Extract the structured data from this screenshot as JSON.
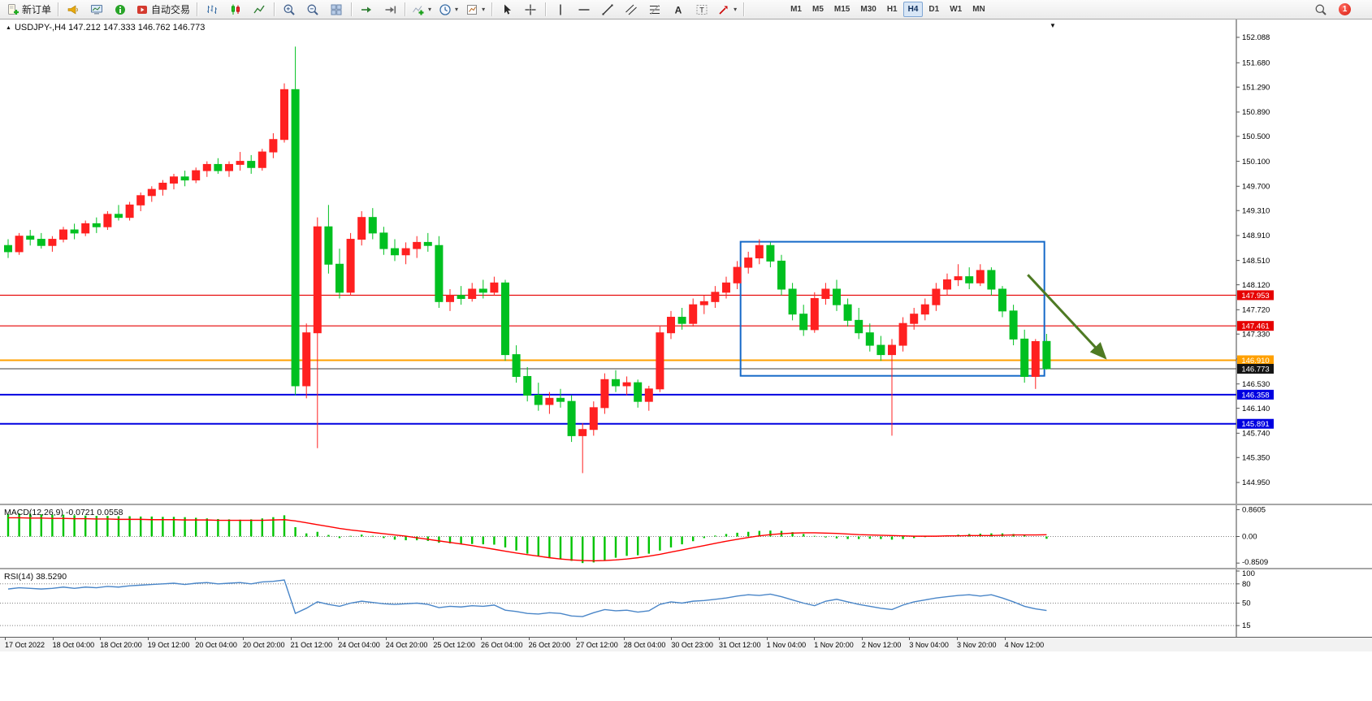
{
  "toolbar": {
    "items": [
      {
        "name": "new-order-button",
        "icon": "doc-plus",
        "label": "新订单"
      },
      {
        "sep": true
      },
      {
        "name": "alerts-megaphone-button",
        "icon": "megaphone"
      },
      {
        "name": "chart-window-button",
        "icon": "monitor"
      },
      {
        "name": "market-info-button",
        "icon": "info"
      },
      {
        "name": "autotrading-button",
        "icon": "autotrading",
        "label": "自动交易"
      },
      {
        "sep": true
      },
      {
        "name": "bar-chart-mode-button",
        "icon": "bars"
      },
      {
        "name": "candlestick-mode-button",
        "icon": "candles"
      },
      {
        "name": "line-chart-mode-button",
        "icon": "linechart"
      },
      {
        "sep": true
      },
      {
        "name": "zoom-in-button",
        "icon": "zoom-in"
      },
      {
        "name": "zoom-out-button",
        "icon": "zoom-out"
      },
      {
        "name": "tile-windows-button",
        "icon": "grid"
      },
      {
        "sep": true
      },
      {
        "name": "auto-scroll-button",
        "icon": "autoscroll"
      },
      {
        "name": "chart-shift-button",
        "icon": "shift"
      },
      {
        "sep": true
      },
      {
        "name": "indicators-button",
        "icon": "indicator-plus",
        "caret": true
      },
      {
        "name": "periods-button",
        "icon": "clock",
        "caret": true
      },
      {
        "name": "templates-button",
        "icon": "template",
        "caret": true
      },
      {
        "sep": true
      },
      {
        "name": "cursor-button",
        "icon": "cursor"
      },
      {
        "name": "crosshair-button",
        "icon": "crosshair"
      },
      {
        "sep": true
      },
      {
        "name": "vertical-line-button",
        "icon": "vline"
      },
      {
        "name": "horizontal-line-button",
        "icon": "hline"
      },
      {
        "name": "trendline-button",
        "icon": "trendline"
      },
      {
        "name": "equidistant-channel-button",
        "icon": "channel"
      },
      {
        "name": "fibonacci-button",
        "icon": "fibo"
      },
      {
        "name": "text-button",
        "icon": "textA"
      },
      {
        "name": "label-button",
        "icon": "textT"
      },
      {
        "name": "arrows-button",
        "icon": "arrows",
        "caret": true
      },
      {
        "sep": true
      }
    ],
    "timeframes": [
      "M1",
      "M5",
      "M15",
      "M30",
      "H1",
      "H4",
      "D1",
      "W1",
      "MN"
    ],
    "active_timeframe": "H4",
    "badge": "1"
  },
  "chart": {
    "title_marker": "▲",
    "title": "USDJPY-,H4 147.212 147.333 146.762 146.773",
    "shift_marker": "▼",
    "price_axis": [
      "152.088",
      "151.680",
      "151.290",
      "150.890",
      "150.500",
      "150.100",
      "149.700",
      "149.310",
      "148.910",
      "148.510",
      "148.120",
      "147.720",
      "147.330",
      "146.930",
      "146.530",
      "146.140",
      "145.740",
      "145.350",
      "144.950"
    ],
    "lines": [
      {
        "name": "resistance-line-147953",
        "label": "147.953",
        "price": 147.953,
        "color": "#e60000",
        "width": 1.2
      },
      {
        "name": "resistance-line-147461",
        "label": "147.461",
        "price": 147.461,
        "color": "#e60000",
        "width": 1.2
      },
      {
        "name": "support-line-146910",
        "label": "146.910",
        "price": 146.91,
        "color": "#ffa000",
        "width": 2
      },
      {
        "name": "current-price-line",
        "label": "146.773",
        "price": 146.773,
        "color": "#3c3c3c",
        "width": 1,
        "tag_color": "#141414"
      },
      {
        "name": "support-line-146358",
        "label": "146.358",
        "price": 146.358,
        "color": "#0000e1",
        "width": 2
      },
      {
        "name": "support-line-145891",
        "label": "145.891",
        "price": 145.891,
        "color": "#0000e1",
        "width": 2
      }
    ],
    "rectangle": {
      "i1": 66.3,
      "i2": 93.8,
      "price_top": 148.81,
      "price_bottom": 146.66,
      "color": "#1569c8"
    },
    "arrow": {
      "from_i": 92.3,
      "from_price": 148.28,
      "to_i": 99.3,
      "to_price": 146.95,
      "color": "#4e7a23"
    }
  },
  "chart_data": {
    "type": "candlestick",
    "symbol": "USDJPY-",
    "timeframe": "H4",
    "open_high_low_close_last": [
      147.212,
      147.333,
      146.762,
      146.773
    ],
    "up_color": "#ff2020",
    "down_color": "#00c020",
    "time_labels": [
      "17 Oct 2022",
      "18 Oct 04:00",
      "18 Oct 20:00",
      "19 Oct 12:00",
      "20 Oct 04:00",
      "20 Oct 20:00",
      "21 Oct 12:00",
      "24 Oct 04:00",
      "24 Oct 20:00",
      "25 Oct 12:00",
      "26 Oct 04:00",
      "26 Oct 20:00",
      "27 Oct 12:00",
      "28 Oct 04:00",
      "30 Oct 23:00",
      "31 Oct 12:00",
      "1 Nov 04:00",
      "1 Nov 20:00",
      "2 Nov 12:00",
      "3 Nov 04:00",
      "3 Nov 20:00",
      "4 Nov 12:00"
    ],
    "ohlc": [
      [
        148.75,
        148.85,
        148.55,
        148.65
      ],
      [
        148.65,
        148.95,
        148.6,
        148.9
      ],
      [
        148.9,
        149.0,
        148.75,
        148.85
      ],
      [
        148.85,
        148.95,
        148.7,
        148.75
      ],
      [
        148.75,
        148.9,
        148.65,
        148.85
      ],
      [
        148.85,
        149.05,
        148.8,
        149.0
      ],
      [
        149.0,
        149.1,
        148.85,
        148.95
      ],
      [
        148.95,
        149.15,
        148.9,
        149.1
      ],
      [
        149.1,
        149.2,
        148.95,
        149.05
      ],
      [
        149.05,
        149.3,
        149.0,
        149.25
      ],
      [
        149.25,
        149.4,
        149.15,
        149.2
      ],
      [
        149.2,
        149.45,
        149.15,
        149.4
      ],
      [
        149.4,
        149.6,
        149.3,
        149.55
      ],
      [
        149.55,
        149.7,
        149.45,
        149.65
      ],
      [
        149.65,
        149.8,
        149.55,
        149.75
      ],
      [
        149.75,
        149.9,
        149.65,
        149.85
      ],
      [
        149.85,
        149.95,
        149.7,
        149.8
      ],
      [
        149.8,
        150.0,
        149.75,
        149.95
      ],
      [
        149.95,
        150.1,
        149.85,
        150.05
      ],
      [
        150.05,
        150.15,
        149.9,
        149.95
      ],
      [
        149.95,
        150.1,
        149.85,
        150.05
      ],
      [
        150.05,
        150.25,
        149.95,
        150.1
      ],
      [
        150.1,
        150.2,
        149.9,
        150.0
      ],
      [
        150.0,
        150.3,
        149.95,
        150.25
      ],
      [
        150.25,
        150.55,
        150.15,
        150.45
      ],
      [
        150.45,
        151.35,
        150.4,
        151.25
      ],
      [
        151.25,
        151.94,
        146.35,
        146.5
      ],
      [
        146.5,
        147.5,
        146.3,
        147.35
      ],
      [
        147.35,
        149.2,
        145.5,
        149.05
      ],
      [
        149.05,
        149.4,
        148.3,
        148.45
      ],
      [
        148.45,
        148.7,
        147.9,
        148.0
      ],
      [
        148.0,
        148.95,
        147.95,
        148.85
      ],
      [
        148.85,
        149.3,
        148.75,
        149.2
      ],
      [
        149.2,
        149.35,
        148.85,
        148.95
      ],
      [
        148.95,
        149.05,
        148.6,
        148.7
      ],
      [
        148.7,
        148.85,
        148.5,
        148.6
      ],
      [
        148.6,
        148.8,
        148.45,
        148.7
      ],
      [
        148.7,
        148.9,
        148.55,
        148.8
      ],
      [
        148.8,
        148.95,
        148.65,
        148.75
      ],
      [
        148.75,
        148.9,
        147.75,
        147.85
      ],
      [
        147.85,
        148.05,
        147.7,
        147.95
      ],
      [
        147.95,
        148.1,
        147.8,
        147.9
      ],
      [
        147.9,
        148.15,
        147.85,
        148.05
      ],
      [
        148.05,
        148.2,
        147.9,
        148.0
      ],
      [
        148.0,
        148.25,
        147.95,
        148.15
      ],
      [
        148.15,
        148.2,
        146.9,
        147.0
      ],
      [
        147.0,
        147.15,
        146.55,
        146.65
      ],
      [
        146.65,
        146.8,
        146.25,
        146.35
      ],
      [
        146.35,
        146.55,
        146.1,
        146.2
      ],
      [
        146.2,
        146.4,
        146.05,
        146.3
      ],
      [
        146.3,
        146.45,
        146.15,
        146.25
      ],
      [
        146.25,
        146.35,
        145.6,
        145.7
      ],
      [
        145.7,
        145.9,
        145.1,
        145.8
      ],
      [
        145.8,
        146.25,
        145.7,
        146.15
      ],
      [
        146.15,
        146.7,
        146.05,
        146.6
      ],
      [
        146.6,
        146.75,
        146.4,
        146.5
      ],
      [
        146.5,
        146.65,
        146.35,
        146.55
      ],
      [
        146.55,
        146.6,
        146.15,
        146.25
      ],
      [
        146.25,
        146.5,
        146.1,
        146.45
      ],
      [
        146.45,
        147.45,
        146.4,
        147.35
      ],
      [
        147.35,
        147.7,
        147.25,
        147.6
      ],
      [
        147.6,
        147.75,
        147.4,
        147.5
      ],
      [
        147.5,
        147.9,
        147.45,
        147.8
      ],
      [
        147.8,
        147.95,
        147.65,
        147.85
      ],
      [
        147.85,
        148.1,
        147.75,
        148.0
      ],
      [
        148.0,
        148.25,
        147.9,
        148.15
      ],
      [
        148.15,
        148.5,
        148.05,
        148.4
      ],
      [
        148.4,
        148.65,
        148.3,
        148.55
      ],
      [
        148.55,
        148.85,
        148.45,
        148.75
      ],
      [
        148.75,
        148.8,
        148.4,
        148.5
      ],
      [
        148.5,
        148.6,
        147.95,
        148.05
      ],
      [
        148.05,
        148.15,
        147.55,
        147.65
      ],
      [
        147.65,
        147.8,
        147.3,
        147.4
      ],
      [
        147.4,
        148.0,
        147.35,
        147.9
      ],
      [
        147.9,
        148.15,
        147.8,
        148.05
      ],
      [
        148.05,
        148.2,
        147.7,
        147.8
      ],
      [
        147.8,
        147.9,
        147.45,
        147.55
      ],
      [
        147.55,
        147.75,
        147.25,
        147.35
      ],
      [
        147.35,
        147.5,
        147.05,
        147.15
      ],
      [
        147.15,
        147.3,
        146.9,
        147.0
      ],
      [
        147.0,
        147.25,
        145.7,
        147.15
      ],
      [
        147.15,
        147.6,
        147.05,
        147.5
      ],
      [
        147.5,
        147.75,
        147.4,
        147.65
      ],
      [
        147.65,
        147.9,
        147.55,
        147.8
      ],
      [
        147.8,
        148.15,
        147.7,
        148.05
      ],
      [
        148.05,
        148.3,
        147.95,
        148.2
      ],
      [
        148.2,
        148.45,
        148.1,
        148.25
      ],
      [
        148.25,
        148.4,
        148.05,
        148.15
      ],
      [
        148.15,
        148.45,
        148.1,
        148.35
      ],
      [
        148.35,
        148.4,
        147.95,
        148.05
      ],
      [
        148.05,
        148.1,
        147.6,
        147.7
      ],
      [
        147.7,
        147.8,
        147.15,
        147.25
      ],
      [
        147.25,
        147.4,
        146.55,
        146.65
      ],
      [
        146.65,
        147.25,
        146.45,
        147.21
      ],
      [
        147.212,
        147.333,
        146.762,
        146.773
      ]
    ]
  },
  "macd": {
    "label": "MACD(12,26,9) -0.0721 0.0558",
    "hist_color": "#00c400",
    "signal_color": "#ff0000",
    "scale_labels": [
      {
        "text": "0.8605",
        "value": 0.8605
      },
      {
        "text": "0.00",
        "value": 0
      },
      {
        "text": "-0.8509",
        "value": -0.8509
      }
    ],
    "histogram": [
      0.72,
      0.74,
      0.73,
      0.71,
      0.7,
      0.7,
      0.68,
      0.67,
      0.66,
      0.66,
      0.65,
      0.65,
      0.64,
      0.64,
      0.63,
      0.63,
      0.62,
      0.6,
      0.58,
      0.56,
      0.55,
      0.54,
      0.55,
      0.58,
      0.62,
      0.68,
      0.3,
      0.1,
      0.15,
      0.05,
      -0.05,
      0.02,
      0.06,
      0.02,
      -0.05,
      -0.1,
      -0.12,
      -0.12,
      -0.14,
      -0.2,
      -0.22,
      -0.24,
      -0.24,
      -0.25,
      -0.26,
      -0.35,
      -0.45,
      -0.55,
      -0.63,
      -0.68,
      -0.72,
      -0.78,
      -0.85,
      -0.83,
      -0.76,
      -0.68,
      -0.62,
      -0.6,
      -0.55,
      -0.45,
      -0.35,
      -0.25,
      -0.15,
      -0.05,
      0.03,
      0.08,
      0.12,
      0.15,
      0.18,
      0.19,
      0.18,
      0.14,
      0.08,
      0.02,
      -0.03,
      -0.06,
      -0.08,
      -0.08,
      -0.07,
      -0.08,
      -0.1,
      -0.08,
      -0.05,
      -0.02,
      0.02,
      0.04,
      0.06,
      0.08,
      0.09,
      0.1,
      0.1,
      0.08,
      0.05,
      0.0,
      -0.0721
    ],
    "signal": [
      0.6,
      0.6,
      0.59,
      0.59,
      0.58,
      0.58,
      0.57,
      0.57,
      0.56,
      0.56,
      0.55,
      0.55,
      0.55,
      0.54,
      0.54,
      0.54,
      0.53,
      0.53,
      0.53,
      0.52,
      0.52,
      0.52,
      0.52,
      0.52,
      0.53,
      0.54,
      0.5,
      0.44,
      0.38,
      0.32,
      0.26,
      0.21,
      0.17,
      0.13,
      0.09,
      0.05,
      0.01,
      -0.04,
      -0.09,
      -0.14,
      -0.19,
      -0.24,
      -0.29,
      -0.35,
      -0.41,
      -0.47,
      -0.53,
      -0.58,
      -0.63,
      -0.68,
      -0.72,
      -0.75,
      -0.77,
      -0.78,
      -0.77,
      -0.75,
      -0.72,
      -0.68,
      -0.63,
      -0.57,
      -0.5,
      -0.43,
      -0.36,
      -0.29,
      -0.22,
      -0.15,
      -0.09,
      -0.03,
      0.02,
      0.06,
      0.09,
      0.11,
      0.12,
      0.12,
      0.11,
      0.1,
      0.08,
      0.06,
      0.05,
      0.04,
      0.03,
      0.02,
      0.01,
      0.01,
      0.01,
      0.02,
      0.02,
      0.03,
      0.03,
      0.03,
      0.04,
      0.05,
      0.05,
      0.05,
      0.0558
    ]
  },
  "rsi": {
    "label": "RSI(14) 38.5290",
    "color": "#4a86c8",
    "scale_labels": [
      {
        "text": "100",
        "value": 100
      },
      {
        "text": "80",
        "value": 80
      },
      {
        "text": "50",
        "value": 50
      },
      {
        "text": "15",
        "value": 15
      }
    ],
    "levels": [
      80,
      50,
      15
    ],
    "values": [
      72,
      74,
      73,
      72,
      73,
      75,
      73,
      75,
      74,
      76,
      75,
      77,
      78,
      79,
      80,
      81,
      79,
      81,
      82,
      80,
      81,
      82,
      80,
      83,
      84,
      86,
      34,
      42,
      52,
      48,
      45,
      50,
      53,
      51,
      49,
      48,
      49,
      50,
      48,
      43,
      45,
      44,
      46,
      45,
      47,
      39,
      37,
      34,
      33,
      35,
      34,
      30,
      29,
      35,
      40,
      38,
      39,
      36,
      38,
      48,
      52,
      50,
      53,
      54,
      56,
      58,
      61,
      63,
      62,
      64,
      60,
      55,
      50,
      46,
      53,
      56,
      52,
      48,
      45,
      42,
      40,
      47,
      52,
      55,
      58,
      60,
      62,
      63,
      61,
      63,
      58,
      52,
      45,
      41,
      38.529
    ]
  }
}
